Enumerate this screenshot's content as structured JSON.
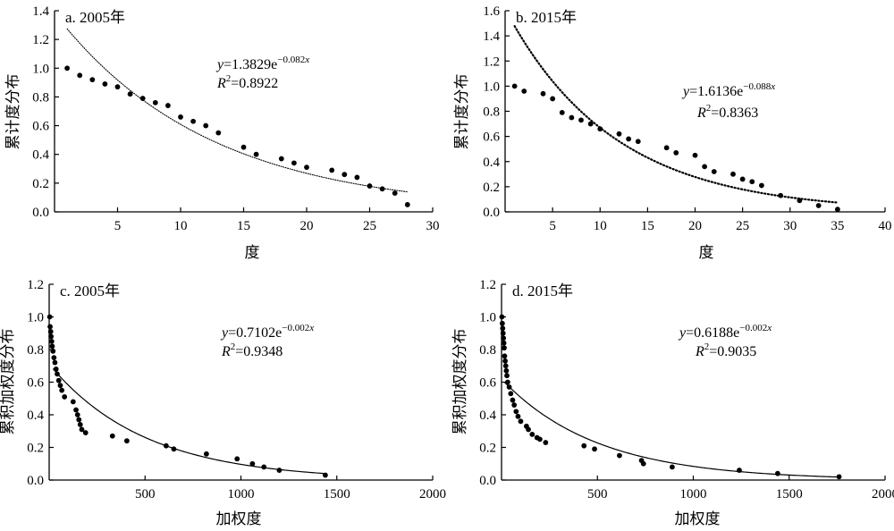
{
  "chart_data": [
    {
      "type": "scatter",
      "title": "a. 2005年",
      "xlabel": "度",
      "ylabel": "累计度分布",
      "xlim": [
        0,
        30
      ],
      "ylim": [
        0,
        1.4
      ],
      "xticks": [
        5,
        10,
        15,
        20,
        25,
        30
      ],
      "yticks": [
        0.0,
        0.2,
        0.4,
        0.6,
        0.8,
        1.0,
        1.2,
        1.4
      ],
      "fit": {
        "a": 1.3829,
        "b": -0.082,
        "line": "dotted",
        "x_range": [
          1,
          28
        ]
      },
      "equation": {
        "coef": "1.3829",
        "exp": "−0.082",
        "r2": "0.8922"
      },
      "points": [
        [
          1,
          1.0
        ],
        [
          2,
          0.95
        ],
        [
          3,
          0.92
        ],
        [
          4,
          0.89
        ],
        [
          5,
          0.87
        ],
        [
          6,
          0.82
        ],
        [
          7,
          0.79
        ],
        [
          8,
          0.76
        ],
        [
          9,
          0.74
        ],
        [
          10,
          0.66
        ],
        [
          11,
          0.63
        ],
        [
          12,
          0.6
        ],
        [
          13,
          0.55
        ],
        [
          15,
          0.45
        ],
        [
          16,
          0.4
        ],
        [
          18,
          0.37
        ],
        [
          19,
          0.34
        ],
        [
          20,
          0.31
        ],
        [
          22,
          0.29
        ],
        [
          23,
          0.26
        ],
        [
          24,
          0.24
        ],
        [
          25,
          0.18
        ],
        [
          26,
          0.16
        ],
        [
          27,
          0.13
        ],
        [
          28,
          0.05
        ]
      ]
    },
    {
      "type": "scatter",
      "title": "b. 2015年",
      "xlabel": "度",
      "ylabel": "累计度分布",
      "xlim": [
        0,
        40
      ],
      "ylim": [
        0,
        1.6
      ],
      "xticks": [
        5,
        10,
        15,
        20,
        25,
        30,
        35,
        40
      ],
      "yticks": [
        0.0,
        0.2,
        0.4,
        0.6,
        0.8,
        1.0,
        1.2,
        1.4,
        1.6
      ],
      "fit": {
        "a": 1.6136,
        "b": -0.088,
        "line": "dotted",
        "x_range": [
          1,
          35
        ]
      },
      "equation": {
        "coef": "1.6136",
        "exp": "−0.088",
        "r2": "0.8363"
      },
      "points": [
        [
          1,
          1.0
        ],
        [
          2,
          0.96
        ],
        [
          4,
          0.94
        ],
        [
          5,
          0.9
        ],
        [
          6,
          0.79
        ],
        [
          7,
          0.75
        ],
        [
          8,
          0.73
        ],
        [
          9,
          0.7
        ],
        [
          10,
          0.66
        ],
        [
          12,
          0.62
        ],
        [
          13,
          0.58
        ],
        [
          14,
          0.56
        ],
        [
          17,
          0.51
        ],
        [
          18,
          0.47
        ],
        [
          20,
          0.45
        ],
        [
          21,
          0.36
        ],
        [
          22,
          0.32
        ],
        [
          24,
          0.3
        ],
        [
          25,
          0.26
        ],
        [
          26,
          0.24
        ],
        [
          27,
          0.21
        ],
        [
          29,
          0.13
        ],
        [
          31,
          0.09
        ],
        [
          33,
          0.05
        ],
        [
          35,
          0.02
        ]
      ]
    },
    {
      "type": "scatter",
      "title": "c. 2005年",
      "xlabel": "加权度",
      "ylabel": "累积加权度分布",
      "xlim": [
        0,
        2000
      ],
      "ylim": [
        0,
        1.2
      ],
      "xticks": [
        500,
        1000,
        1500,
        2000
      ],
      "yticks": [
        0.0,
        0.2,
        0.4,
        0.6,
        0.8,
        1.0,
        1.2
      ],
      "fit": {
        "a": 0.7102,
        "b": -0.002,
        "line": "solid",
        "x_range": [
          20,
          1450
        ]
      },
      "equation": {
        "coef": "0.7102",
        "exp": "−0.002",
        "r2": "0.9348"
      },
      "points": [
        [
          3,
          1.0
        ],
        [
          5,
          0.94
        ],
        [
          8,
          0.91
        ],
        [
          10,
          0.88
        ],
        [
          13,
          0.85
        ],
        [
          16,
          0.82
        ],
        [
          20,
          0.79
        ],
        [
          25,
          0.75
        ],
        [
          30,
          0.72
        ],
        [
          36,
          0.68
        ],
        [
          42,
          0.65
        ],
        [
          50,
          0.61
        ],
        [
          58,
          0.58
        ],
        [
          66,
          0.55
        ],
        [
          80,
          0.51
        ],
        [
          125,
          0.48
        ],
        [
          140,
          0.43
        ],
        [
          148,
          0.4
        ],
        [
          155,
          0.37
        ],
        [
          162,
          0.34
        ],
        [
          170,
          0.31
        ],
        [
          190,
          0.29
        ],
        [
          330,
          0.27
        ],
        [
          405,
          0.24
        ],
        [
          610,
          0.21
        ],
        [
          650,
          0.19
        ],
        [
          820,
          0.16
        ],
        [
          980,
          0.13
        ],
        [
          1060,
          0.1
        ],
        [
          1120,
          0.08
        ],
        [
          1200,
          0.06
        ],
        [
          1440,
          0.03
        ]
      ]
    },
    {
      "type": "scatter",
      "title": "d. 2015年",
      "xlabel": "加权度",
      "ylabel": "累积加权度分布",
      "xlim": [
        0,
        2000
      ],
      "ylim": [
        0,
        1.2
      ],
      "xticks": [
        500,
        1000,
        1500,
        2000
      ],
      "yticks": [
        0.0,
        0.2,
        0.4,
        0.6,
        0.8,
        1.0,
        1.2
      ],
      "fit": {
        "a": 0.6188,
        "b": -0.002,
        "line": "solid",
        "x_range": [
          15,
          1760
        ]
      },
      "equation": {
        "coef": "0.6188",
        "exp": "−0.002",
        "r2": "0.9035"
      },
      "points": [
        [
          2,
          1.0
        ],
        [
          4,
          0.96
        ],
        [
          6,
          0.93
        ],
        [
          8,
          0.9
        ],
        [
          10,
          0.87
        ],
        [
          12,
          0.84
        ],
        [
          14,
          0.81
        ],
        [
          16,
          0.76
        ],
        [
          19,
          0.73
        ],
        [
          22,
          0.7
        ],
        [
          25,
          0.67
        ],
        [
          28,
          0.64
        ],
        [
          32,
          0.6
        ],
        [
          40,
          0.57
        ],
        [
          48,
          0.53
        ],
        [
          58,
          0.49
        ],
        [
          66,
          0.46
        ],
        [
          76,
          0.42
        ],
        [
          86,
          0.39
        ],
        [
          100,
          0.36
        ],
        [
          130,
          0.33
        ],
        [
          140,
          0.31
        ],
        [
          160,
          0.28
        ],
        [
          185,
          0.26
        ],
        [
          200,
          0.25
        ],
        [
          230,
          0.23
        ],
        [
          430,
          0.21
        ],
        [
          485,
          0.19
        ],
        [
          615,
          0.15
        ],
        [
          730,
          0.12
        ],
        [
          740,
          0.1
        ],
        [
          890,
          0.08
        ],
        [
          1240,
          0.06
        ],
        [
          1440,
          0.04
        ],
        [
          1760,
          0.02
        ]
      ]
    }
  ]
}
